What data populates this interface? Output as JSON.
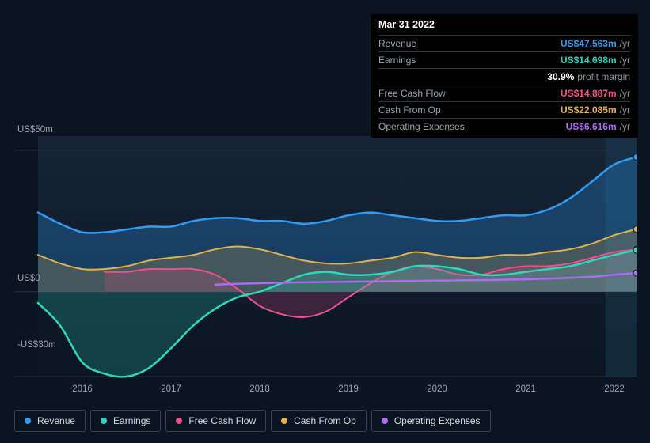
{
  "tooltip": {
    "date": "Mar 31 2022",
    "rows": [
      {
        "label": "Revenue",
        "value": "US$47.563m",
        "suffix": "/yr",
        "cls": "revenue"
      },
      {
        "label": "Earnings",
        "value": "US$14.698m",
        "suffix": "/yr",
        "cls": "earnings"
      }
    ],
    "profit_margin": {
      "value": "30.9%",
      "label": "profit margin"
    },
    "rows2": [
      {
        "label": "Free Cash Flow",
        "value": "US$14.887m",
        "suffix": "/yr",
        "cls": "fcf"
      },
      {
        "label": "Cash From Op",
        "value": "US$22.085m",
        "suffix": "/yr",
        "cls": "cfo"
      },
      {
        "label": "Operating Expenses",
        "value": "US$6.616m",
        "suffix": "/yr",
        "cls": "opex"
      }
    ]
  },
  "chart": {
    "type": "area",
    "background": "#0b1521",
    "plot_gradient_from": "#162435",
    "plot_gradient_to": "#0b1521",
    "grid_color": "#273140",
    "y": {
      "min": -30,
      "max": 55,
      "ticks": [
        {
          "v": 50,
          "label": "US$50m"
        },
        {
          "v": 0,
          "label": "US$0"
        },
        {
          "v": -30,
          "label": "-US$30m"
        }
      ],
      "label_fontsize": 11.5,
      "label_color": "#9aa3ad"
    },
    "x": {
      "years": [
        2016,
        2017,
        2018,
        2019,
        2020,
        2021,
        2022
      ],
      "min": 2015.5,
      "max": 2022.25,
      "label_fontsize": 11.5,
      "label_color": "#9aa3ad"
    },
    "forecast_band": {
      "from_year": 2021.9,
      "color": "#1a3a52",
      "opacity": 0.55
    },
    "series": [
      {
        "name": "Revenue",
        "cls": "revenue",
        "color": "#2f9bf4",
        "fill_opacity": 0.28,
        "line_width": 2.5,
        "data": [
          [
            2015.5,
            28
          ],
          [
            2015.75,
            24
          ],
          [
            2016,
            21
          ],
          [
            2016.25,
            21
          ],
          [
            2016.5,
            22
          ],
          [
            2016.75,
            23
          ],
          [
            2017,
            23
          ],
          [
            2017.25,
            25
          ],
          [
            2017.5,
            26
          ],
          [
            2017.75,
            26
          ],
          [
            2018,
            25
          ],
          [
            2018.25,
            25
          ],
          [
            2018.5,
            24
          ],
          [
            2018.75,
            25
          ],
          [
            2019,
            27
          ],
          [
            2019.25,
            28
          ],
          [
            2019.5,
            27
          ],
          [
            2019.75,
            26
          ],
          [
            2020,
            25
          ],
          [
            2020.25,
            25
          ],
          [
            2020.5,
            26
          ],
          [
            2020.75,
            27
          ],
          [
            2021,
            27
          ],
          [
            2021.25,
            29
          ],
          [
            2021.5,
            33
          ],
          [
            2021.75,
            39
          ],
          [
            2022,
            45
          ],
          [
            2022.25,
            47.6
          ]
        ]
      },
      {
        "name": "Cash From Op",
        "cls": "cfo",
        "color": "#e3b14d",
        "fill_opacity": 0.22,
        "line_width": 2,
        "data": [
          [
            2015.5,
            13
          ],
          [
            2015.75,
            10
          ],
          [
            2016,
            8
          ],
          [
            2016.25,
            8
          ],
          [
            2016.5,
            9
          ],
          [
            2016.75,
            11
          ],
          [
            2017,
            12
          ],
          [
            2017.25,
            13
          ],
          [
            2017.5,
            15
          ],
          [
            2017.75,
            16
          ],
          [
            2018,
            15
          ],
          [
            2018.25,
            13
          ],
          [
            2018.5,
            11
          ],
          [
            2018.75,
            10
          ],
          [
            2019,
            10
          ],
          [
            2019.25,
            11
          ],
          [
            2019.5,
            12
          ],
          [
            2019.75,
            14
          ],
          [
            2020,
            13
          ],
          [
            2020.25,
            12
          ],
          [
            2020.5,
            12
          ],
          [
            2020.75,
            13
          ],
          [
            2021,
            13
          ],
          [
            2021.25,
            14
          ],
          [
            2021.5,
            15
          ],
          [
            2021.75,
            17
          ],
          [
            2022,
            20
          ],
          [
            2022.25,
            22.1
          ]
        ]
      },
      {
        "name": "Free Cash Flow",
        "cls": "fcf",
        "color": "#ef4f8a",
        "fill_opacity": 0.2,
        "line_width": 2,
        "data": [
          [
            2016.25,
            7
          ],
          [
            2016.5,
            7
          ],
          [
            2016.75,
            8
          ],
          [
            2017,
            8
          ],
          [
            2017.25,
            8
          ],
          [
            2017.5,
            6
          ],
          [
            2017.75,
            1
          ],
          [
            2018,
            -5
          ],
          [
            2018.25,
            -8
          ],
          [
            2018.5,
            -9
          ],
          [
            2018.75,
            -7
          ],
          [
            2019,
            -2
          ],
          [
            2019.25,
            3
          ],
          [
            2019.5,
            7
          ],
          [
            2019.75,
            9
          ],
          [
            2020,
            8
          ],
          [
            2020.25,
            6
          ],
          [
            2020.5,
            6
          ],
          [
            2020.75,
            8
          ],
          [
            2021,
            9
          ],
          [
            2021.25,
            9
          ],
          [
            2021.5,
            10
          ],
          [
            2021.75,
            12
          ],
          [
            2022,
            14
          ],
          [
            2022.25,
            14.9
          ]
        ]
      },
      {
        "name": "Earnings",
        "cls": "earnings",
        "color": "#2fd6bb",
        "fill_opacity": 0.22,
        "line_width": 2.5,
        "data": [
          [
            2015.5,
            -4
          ],
          [
            2015.75,
            -12
          ],
          [
            2016,
            -25
          ],
          [
            2016.25,
            -29
          ],
          [
            2016.5,
            -30
          ],
          [
            2016.75,
            -27
          ],
          [
            2017,
            -20
          ],
          [
            2017.25,
            -12
          ],
          [
            2017.5,
            -6
          ],
          [
            2017.75,
            -2
          ],
          [
            2018,
            0
          ],
          [
            2018.25,
            3
          ],
          [
            2018.5,
            6
          ],
          [
            2018.75,
            7
          ],
          [
            2019,
            6
          ],
          [
            2019.25,
            6
          ],
          [
            2019.5,
            7
          ],
          [
            2019.75,
            9
          ],
          [
            2020,
            9
          ],
          [
            2020.25,
            8
          ],
          [
            2020.5,
            6
          ],
          [
            2020.75,
            6
          ],
          [
            2021,
            7
          ],
          [
            2021.25,
            8
          ],
          [
            2021.5,
            9
          ],
          [
            2021.75,
            11
          ],
          [
            2022,
            13
          ],
          [
            2022.25,
            14.7
          ]
        ]
      },
      {
        "name": "Operating Expenses",
        "cls": "opex",
        "color": "#b06af2",
        "fill_opacity": 0.0,
        "line_width": 2.5,
        "data": [
          [
            2017.5,
            2.5
          ],
          [
            2017.75,
            2.8
          ],
          [
            2018,
            3
          ],
          [
            2018.25,
            3.2
          ],
          [
            2018.5,
            3.3
          ],
          [
            2018.75,
            3.4
          ],
          [
            2019,
            3.5
          ],
          [
            2019.25,
            3.6
          ],
          [
            2019.5,
            3.7
          ],
          [
            2019.75,
            3.8
          ],
          [
            2020,
            3.9
          ],
          [
            2020.25,
            4
          ],
          [
            2020.5,
            4.1
          ],
          [
            2020.75,
            4.2
          ],
          [
            2021,
            4.4
          ],
          [
            2021.25,
            4.6
          ],
          [
            2021.5,
            4.9
          ],
          [
            2021.75,
            5.3
          ],
          [
            2022,
            6
          ],
          [
            2022.25,
            6.6
          ]
        ]
      }
    ],
    "end_markers": true,
    "end_marker_radius": 4
  },
  "legend": [
    {
      "label": "Revenue",
      "cls": "revenue"
    },
    {
      "label": "Earnings",
      "cls": "earnings"
    },
    {
      "label": "Free Cash Flow",
      "cls": "fcf"
    },
    {
      "label": "Cash From Op",
      "cls": "cfo"
    },
    {
      "label": "Operating Expenses",
      "cls": "opex"
    }
  ]
}
